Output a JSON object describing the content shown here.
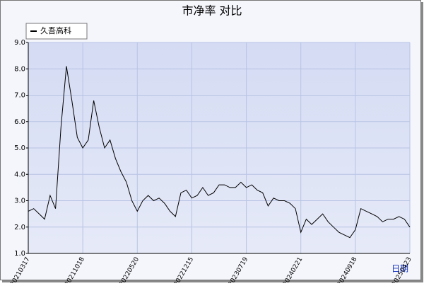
{
  "chart_data": {
    "type": "line",
    "title": "市净率 对比",
    "x_label": "日期",
    "categories": [
      "20210317",
      null,
      null,
      null,
      null,
      null,
      null,
      null,
      null,
      null,
      "20211018",
      null,
      null,
      null,
      null,
      null,
      null,
      null,
      null,
      null,
      "20220520",
      null,
      null,
      null,
      null,
      null,
      null,
      null,
      null,
      null,
      "20221215",
      null,
      null,
      null,
      null,
      null,
      null,
      null,
      null,
      null,
      "20230719",
      null,
      null,
      null,
      null,
      null,
      null,
      null,
      null,
      null,
      "20240221",
      null,
      null,
      null,
      null,
      null,
      null,
      null,
      null,
      null,
      "20240918",
      null,
      null,
      null,
      null,
      null,
      null,
      null,
      null,
      null,
      "20250423"
    ],
    "series": [
      {
        "name": "久吾高科",
        "color": "#000000",
        "values": [
          2.6,
          2.7,
          2.5,
          2.3,
          3.2,
          2.7,
          5.8,
          8.1,
          6.8,
          5.4,
          5.0,
          5.3,
          6.8,
          5.8,
          5.0,
          5.3,
          4.6,
          4.1,
          3.7,
          3.0,
          2.6,
          3.0,
          3.2,
          3.0,
          3.1,
          2.9,
          2.6,
          2.4,
          3.3,
          3.4,
          3.1,
          3.2,
          3.5,
          3.2,
          3.3,
          3.6,
          3.6,
          3.5,
          3.5,
          3.7,
          3.5,
          3.6,
          3.4,
          3.3,
          2.8,
          3.1,
          3.0,
          3.0,
          2.9,
          2.7,
          1.8,
          2.3,
          2.1,
          2.3,
          2.5,
          2.2,
          2.0,
          1.8,
          1.7,
          1.6,
          1.9,
          2.7,
          2.6,
          2.5,
          2.4,
          2.2,
          2.3,
          2.3,
          2.4,
          2.3,
          2.0
        ]
      }
    ],
    "ylim": [
      1,
      9
    ],
    "yticks": [
      {
        "value": 1,
        "label": "1.0"
      },
      {
        "value": 2,
        "label": "2.0"
      },
      {
        "value": 3,
        "label": "3.0"
      },
      {
        "value": 4,
        "label": "4.0"
      },
      {
        "value": 5,
        "label": "5.0"
      },
      {
        "value": 6,
        "label": "6.0"
      },
      {
        "value": 7,
        "label": "7.0"
      },
      {
        "value": 8,
        "label": "8.0"
      },
      {
        "value": 9,
        "label": "9.0"
      }
    ],
    "grid": true
  }
}
